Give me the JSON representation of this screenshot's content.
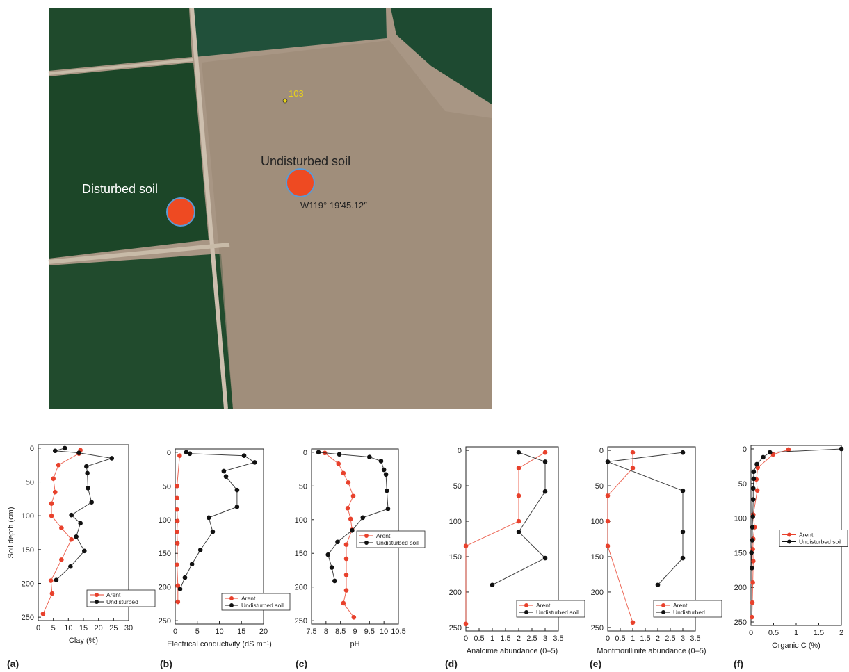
{
  "photo": {
    "disturbed_label": "Disturbed soil",
    "undisturbed_label": "Undisturbed soil",
    "point_label": "103",
    "coordinate": "W119° 19'45.12″"
  },
  "chart_data": [
    {
      "type": "line",
      "label": "(a)",
      "xlabel": "Clay (%)",
      "ylabel": "Soil depth (cm)",
      "xlim": [
        0,
        30
      ],
      "xticks": [
        0,
        5,
        10,
        15,
        20,
        25,
        30
      ],
      "ylim": [
        255,
        -5
      ],
      "yticks": [
        0,
        50,
        100,
        150,
        200,
        250
      ],
      "legend": "lower right",
      "series": [
        {
          "name": "Arent",
          "color": "#e8412c",
          "x": [
            14,
            13.5,
            6.7,
            5,
            5.6,
            4.4,
            4.4,
            7.7,
            11,
            7.7,
            4.2,
            4.6,
            1.6
          ],
          "y": [
            3,
            8,
            25,
            45,
            65,
            82,
            100,
            118,
            135,
            165,
            196,
            215,
            245
          ]
        },
        {
          "name": "Undisturbed",
          "color": "#111111",
          "x": [
            8.8,
            5.6,
            13.5,
            24.4,
            16,
            16.3,
            16.5,
            17.7,
            11,
            14,
            12.6,
            15.3,
            10.7,
            6
          ],
          "y": [
            0,
            4,
            7,
            15,
            27,
            37,
            59,
            80,
            99,
            111,
            131,
            152,
            175,
            195
          ]
        }
      ]
    },
    {
      "type": "line",
      "label": "(b)",
      "xlabel": "Electrical conductivity (dS m⁻¹)",
      "xlim": [
        0,
        20
      ],
      "xticks": [
        0,
        5,
        10,
        15,
        20
      ],
      "ylim": [
        255,
        -5
      ],
      "yticks": [
        0,
        50,
        100,
        150,
        200,
        250
      ],
      "legend": "lower right",
      "series": [
        {
          "name": "Arent",
          "color": "#e8412c",
          "x": [
            1.0,
            0.4,
            0.4,
            0.4,
            0.5,
            0.4,
            0.5,
            0.4,
            0.6,
            0.6
          ],
          "y": [
            5,
            50,
            68,
            85,
            102,
            118,
            135,
            167,
            198,
            222
          ]
        },
        {
          "name": "Undisturbed soil",
          "color": "#111111",
          "x": [
            2.5,
            3.3,
            15.6,
            18,
            11,
            11.5,
            14,
            14,
            7.6,
            8.5,
            5.7,
            3.8,
            2.2,
            1.1
          ],
          "y": [
            0,
            2,
            5,
            15,
            28,
            36,
            56,
            81,
            97,
            118,
            145,
            166,
            186,
            203
          ]
        }
      ]
    },
    {
      "type": "line",
      "label": "(c)",
      "xlabel": "pH",
      "xlim": [
        7.5,
        10.5
      ],
      "xticks": [
        7.5,
        8,
        8.5,
        9,
        9.5,
        10,
        10.5
      ],
      "ylim": [
        255,
        -5
      ],
      "yticks": [
        0,
        50,
        100,
        150,
        200,
        250
      ],
      "legend": "center right",
      "series": [
        {
          "name": "Arent",
          "color": "#e8412c",
          "x": [
            7.96,
            8.43,
            8.6,
            8.77,
            8.94,
            8.75,
            8.85,
            8.9,
            8.7,
            8.7,
            8.7,
            8.7,
            8.6,
            8.96
          ],
          "y": [
            1,
            17,
            31,
            45,
            65,
            83,
            99,
            115,
            137,
            158,
            182,
            205,
            224,
            245
          ]
        },
        {
          "name": "Undisturbed soil",
          "color": "#111111",
          "x": [
            7.74,
            8.46,
            9.5,
            9.9,
            10.0,
            10.07,
            10.1,
            10.14,
            9.27,
            8.9,
            8.4,
            8.07,
            8.2,
            8.3
          ],
          "y": [
            0,
            3,
            7,
            13,
            26,
            33,
            57,
            84,
            97,
            116,
            133,
            152,
            171,
            191
          ]
        }
      ]
    },
    {
      "type": "line",
      "label": "(d)",
      "xlabel": "Analcime abundance (0–5)",
      "xlim": [
        0,
        3.5
      ],
      "xticks": [
        0,
        0.5,
        1,
        1.5,
        2,
        2.5,
        3,
        3.5
      ],
      "ylim": [
        255,
        -5
      ],
      "yticks": [
        0,
        50,
        100,
        150,
        200,
        250
      ],
      "legend": "lower right",
      "series": [
        {
          "name": "Arent",
          "color": "#e8412c",
          "x": [
            3,
            2,
            2,
            2,
            0,
            0
          ],
          "y": [
            3,
            25,
            64,
            100,
            135,
            245
          ]
        },
        {
          "name": "Undisturbed soil",
          "color": "#111111",
          "x": [
            2,
            3,
            3,
            2,
            3,
            1
          ],
          "y": [
            3,
            16,
            58,
            115,
            152,
            190
          ]
        }
      ]
    },
    {
      "type": "line",
      "label": "(e)",
      "xlabel": "Montmorillinite abundance (0–5)",
      "xlim": [
        0,
        3.5
      ],
      "xticks": [
        0,
        0.5,
        1,
        1.5,
        2,
        2.5,
        3,
        3.5
      ],
      "ylim": [
        255,
        -5
      ],
      "yticks": [
        0,
        50,
        100,
        150,
        200,
        250
      ],
      "legend": "lower right",
      "series": [
        {
          "name": "Arent",
          "color": "#e8412c",
          "x": [
            1,
            1,
            0,
            0,
            0,
            1
          ],
          "y": [
            3,
            25,
            64,
            100,
            135,
            243
          ]
        },
        {
          "name": "Undisturbed",
          "color": "#111111",
          "x": [
            3,
            0,
            3,
            3,
            3,
            2
          ],
          "y": [
            3,
            16,
            57,
            115,
            152,
            190
          ]
        }
      ]
    },
    {
      "type": "line",
      "label": "(f)",
      "xlabel": "Organic C (%)",
      "xlim": [
        0,
        2
      ],
      "xticks": [
        0,
        0.5,
        1,
        1.5,
        2
      ],
      "ylim": [
        255,
        -5
      ],
      "yticks": [
        0,
        50,
        100,
        150,
        200,
        250
      ],
      "legend": "center right",
      "series": [
        {
          "name": "Arent",
          "color": "#e8412c",
          "x": [
            0.83,
            0.49,
            0.15,
            0.12,
            0.14,
            0.05,
            0.08,
            0.05,
            0.04,
            0.05,
            0.04,
            0.03,
            0.02
          ],
          "y": [
            1,
            8,
            27,
            44,
            60,
            95,
            113,
            130,
            145,
            162,
            193,
            222,
            243
          ]
        },
        {
          "name": "Undisturbed soil",
          "color": "#111111",
          "x": [
            2.0,
            0.42,
            0.27,
            0.13,
            0.06,
            0.06,
            0.05,
            0.05,
            0.04,
            0.03,
            0.03,
            0.01,
            0.02
          ],
          "y": [
            0,
            5,
            12,
            22,
            33,
            43,
            57,
            73,
            98,
            113,
            132,
            150,
            172
          ]
        }
      ]
    }
  ]
}
